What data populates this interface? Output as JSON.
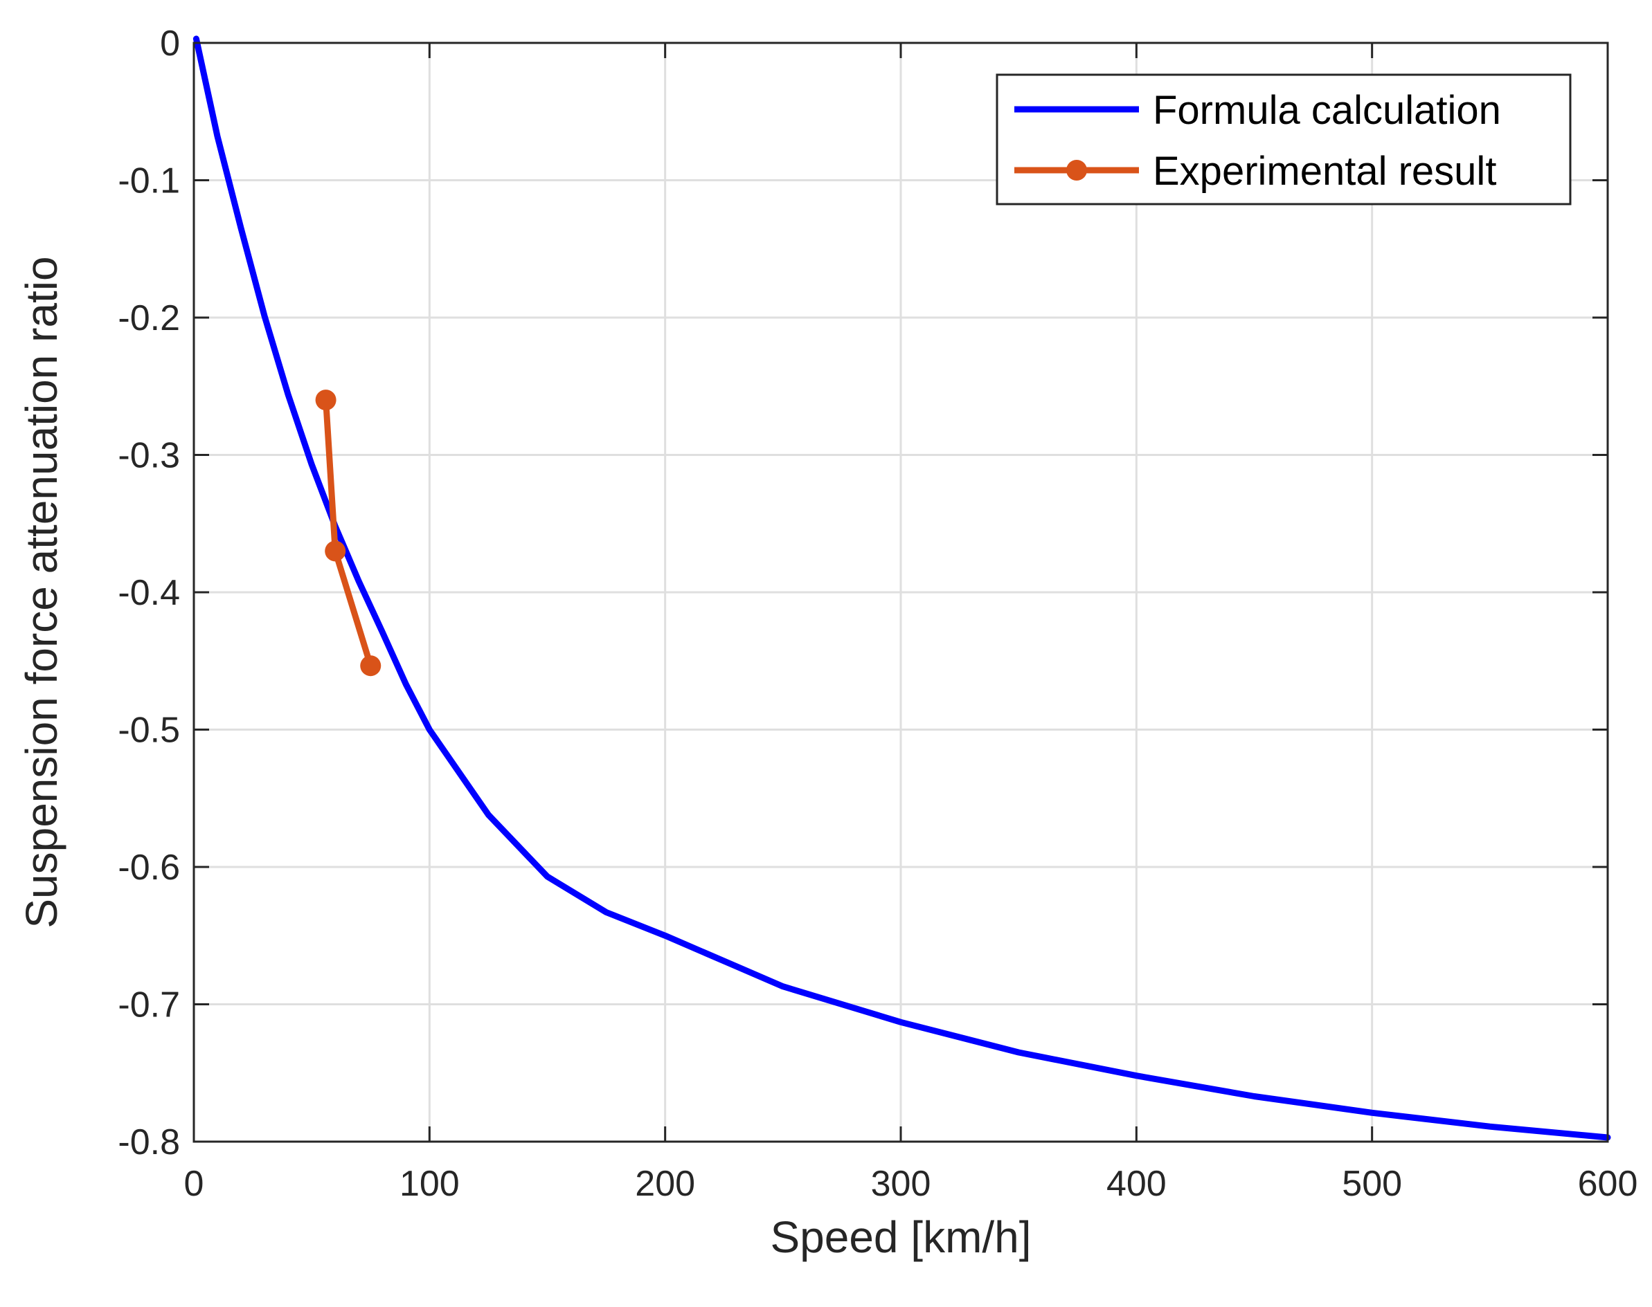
{
  "chart_data": {
    "type": "line",
    "title": "",
    "xlabel": "Speed [km/h]",
    "ylabel": "Suspension force attenuation ratio",
    "xlim": [
      0,
      600
    ],
    "ylim": [
      -0.8,
      0
    ],
    "xticks": [
      0,
      100,
      200,
      300,
      400,
      500,
      600
    ],
    "xtick_labels": [
      "0",
      "100",
      "200",
      "300",
      "400",
      "500",
      "600"
    ],
    "yticks": [
      0,
      -0.1,
      -0.2,
      -0.3,
      -0.4,
      -0.5,
      -0.6,
      -0.7,
      -0.8
    ],
    "ytick_labels": [
      "0",
      "-0.1",
      "-0.2",
      "-0.3",
      "-0.4",
      "-0.5",
      "-0.6",
      "-0.7",
      "-0.8"
    ],
    "grid": true,
    "legend_location": "top-right",
    "series": [
      {
        "name": "Formula calculation",
        "color": "#0000ff",
        "marker": "none",
        "x": [
          1,
          10,
          20,
          30,
          40,
          50,
          60,
          70,
          80,
          90,
          100,
          125,
          150,
          175,
          200,
          250,
          300,
          350,
          400,
          450,
          500,
          550,
          600
        ],
        "y": [
          0.003,
          -0.068,
          -0.135,
          -0.199,
          -0.256,
          -0.307,
          -0.352,
          -0.392,
          -0.429,
          -0.467,
          -0.5,
          -0.562,
          -0.607,
          -0.633,
          -0.65,
          -0.687,
          -0.713,
          -0.735,
          -0.752,
          -0.767,
          -0.779,
          -0.789,
          -0.797
        ]
      },
      {
        "name": "Experimental result",
        "color": "#d95319",
        "marker": "circle",
        "x": [
          56,
          60,
          75
        ],
        "y": [
          -0.26,
          -0.37,
          -0.4535
        ]
      }
    ]
  }
}
